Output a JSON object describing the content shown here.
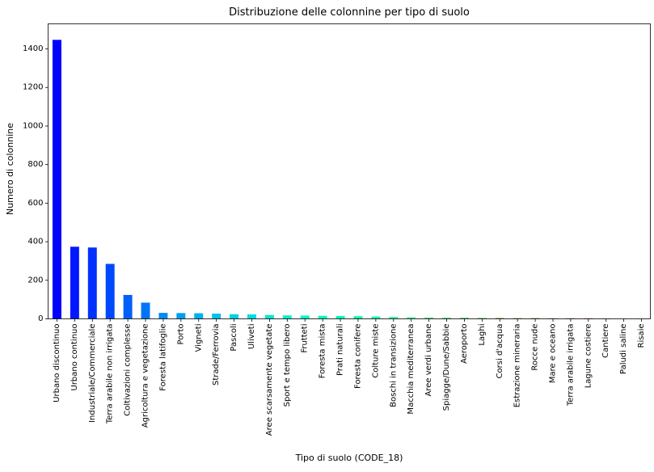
{
  "chart_data": {
    "type": "bar",
    "title": "Distribuzione delle colonnine per tipo di suolo",
    "xlabel": "Tipo di suolo (CODE_18)",
    "ylabel": "Numero di colonnine",
    "ylim": [
      0,
      1530
    ],
    "yticks": [
      0,
      200,
      400,
      600,
      800,
      1000,
      1200,
      1400
    ],
    "grid": false,
    "colormap": "rainbow",
    "categories": [
      "Urbano discontinuo",
      "Urbano continuo",
      "Industriale/Commerciale",
      "Terra arabile non irrigata",
      "Coltivazioni complesse",
      "Agricoltura e vegetazione",
      "Foresta latifoglie",
      "Porto",
      "Vigneti",
      "Strade/Ferrovia",
      "Pascoli",
      "Uliveti",
      "Aree scarsamente vegetate",
      "Sport e tempo libero",
      "Frutteti",
      "Foresta mista",
      "Prati naturali",
      "Foresta conifere",
      "Colture miste",
      "Boschi in transizione",
      "Macchia mediterranea",
      "Aree verdi urbane",
      "Spiagge/Dune/Sabbie",
      "Aeroporto",
      "Laghi",
      "Corsi d'acqua",
      "Estrazione mineraria",
      "Rocce nude",
      "Mare e oceano",
      "Terra arabile irrigata",
      "Lagune costiere",
      "Cantiere",
      "Paludi saline",
      "Risaie"
    ],
    "values": [
      1447,
      374,
      370,
      285,
      124,
      84,
      31,
      30,
      29,
      27,
      24,
      23,
      20,
      18,
      17,
      16,
      15,
      14,
      12,
      10,
      8,
      7,
      6,
      6,
      5,
      5,
      4,
      4,
      3,
      3,
      3,
      2,
      1,
      1
    ]
  }
}
